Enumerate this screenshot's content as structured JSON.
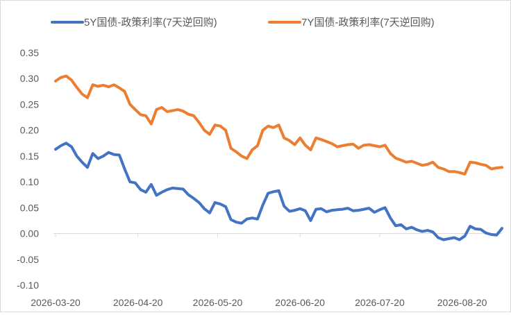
{
  "chart_data": {
    "type": "line",
    "title": "",
    "xlabel": "",
    "ylabel": "",
    "ylim": [
      -0.1,
      0.35
    ],
    "y_ticks": [
      "0.35",
      "0.30",
      "0.25",
      "0.20",
      "0.15",
      "0.10",
      "0.05",
      "0.00",
      "-0.05",
      "-0.10"
    ],
    "y_tick_values": [
      0.35,
      0.3,
      0.25,
      0.2,
      0.15,
      0.1,
      0.05,
      0.0,
      -0.05,
      -0.1
    ],
    "x_ticks": [
      "2026-03-20",
      "2026-04-20",
      "2026-05-20",
      "2026-06-20",
      "2026-07-20",
      "2026-08-20"
    ],
    "legend": "top",
    "grid": false,
    "x": [
      "2026-03-20",
      "2026-03-22",
      "2026-03-24",
      "2026-03-26",
      "2026-03-28",
      "2026-03-30",
      "2026-04-01",
      "2026-04-03",
      "2026-04-05",
      "2026-04-07",
      "2026-04-09",
      "2026-04-11",
      "2026-04-13",
      "2026-04-15",
      "2026-04-17",
      "2026-04-19",
      "2026-04-21",
      "2026-04-23",
      "2026-04-25",
      "2026-04-27",
      "2026-04-29",
      "2026-05-01",
      "2026-05-03",
      "2026-05-05",
      "2026-05-07",
      "2026-05-09",
      "2026-05-11",
      "2026-05-13",
      "2026-05-15",
      "2026-05-17",
      "2026-05-19",
      "2026-05-21",
      "2026-05-23",
      "2026-05-25",
      "2026-05-27",
      "2026-05-29",
      "2026-05-31",
      "2026-06-02",
      "2026-06-04",
      "2026-06-06",
      "2026-06-08",
      "2026-06-10",
      "2026-06-12",
      "2026-06-14",
      "2026-06-16",
      "2026-06-18",
      "2026-06-20",
      "2026-06-22",
      "2026-06-24",
      "2026-06-26",
      "2026-06-28",
      "2026-06-30",
      "2026-07-02",
      "2026-07-04",
      "2026-07-06",
      "2026-07-08",
      "2026-07-10",
      "2026-07-12",
      "2026-07-14",
      "2026-07-16",
      "2026-07-18",
      "2026-07-20",
      "2026-07-22",
      "2026-07-24",
      "2026-07-26",
      "2026-07-28",
      "2026-07-30",
      "2026-08-01",
      "2026-08-03",
      "2026-08-05",
      "2026-08-07",
      "2026-08-09",
      "2026-08-11",
      "2026-08-13",
      "2026-08-15",
      "2026-08-17",
      "2026-08-19",
      "2026-08-21",
      "2026-08-23",
      "2026-08-25",
      "2026-08-27",
      "2026-08-29",
      "2026-08-31",
      "2026-09-02",
      "2026-09-04"
    ],
    "series": [
      {
        "name": "5Y国债-政策利率(7天逆回购)",
        "color": "#4472C4",
        "values": [
          0.163,
          0.17,
          0.175,
          0.168,
          0.15,
          0.138,
          0.128,
          0.155,
          0.145,
          0.15,
          0.157,
          0.153,
          0.152,
          0.125,
          0.1,
          0.098,
          0.085,
          0.08,
          0.095,
          0.074,
          0.08,
          0.085,
          0.088,
          0.087,
          0.086,
          0.075,
          0.068,
          0.06,
          0.048,
          0.04,
          0.06,
          0.057,
          0.052,
          0.027,
          0.022,
          0.02,
          0.028,
          0.03,
          0.028,
          0.055,
          0.078,
          0.081,
          0.083,
          0.053,
          0.043,
          0.045,
          0.048,
          0.044,
          0.025,
          0.047,
          0.048,
          0.042,
          0.045,
          0.046,
          0.047,
          0.049,
          0.044,
          0.045,
          0.047,
          0.049,
          0.041,
          0.046,
          0.05,
          0.03,
          0.015,
          0.017,
          0.009,
          0.012,
          0.007,
          0.004,
          0.006,
          0.003,
          -0.008,
          -0.012,
          -0.01,
          -0.008,
          -0.012,
          -0.005,
          0.014,
          0.009,
          0.008,
          0.001,
          -0.002,
          -0.003,
          0.01
        ]
      },
      {
        "name": "7Y国债-政策利率(7天逆回购)",
        "color": "#ED7D31",
        "values": [
          0.295,
          0.302,
          0.305,
          0.297,
          0.283,
          0.27,
          0.263,
          0.288,
          0.285,
          0.287,
          0.284,
          0.288,
          0.282,
          0.275,
          0.25,
          0.24,
          0.23,
          0.228,
          0.212,
          0.24,
          0.244,
          0.236,
          0.238,
          0.24,
          0.237,
          0.231,
          0.228,
          0.215,
          0.2,
          0.192,
          0.21,
          0.208,
          0.2,
          0.165,
          0.158,
          0.15,
          0.145,
          0.162,
          0.17,
          0.2,
          0.208,
          0.205,
          0.21,
          0.185,
          0.18,
          0.172,
          0.185,
          0.171,
          0.162,
          0.185,
          0.182,
          0.178,
          0.174,
          0.168,
          0.17,
          0.172,
          0.173,
          0.165,
          0.171,
          0.172,
          0.17,
          0.168,
          0.171,
          0.155,
          0.146,
          0.142,
          0.138,
          0.14,
          0.136,
          0.132,
          0.134,
          0.138,
          0.128,
          0.125,
          0.12,
          0.12,
          0.118,
          0.115,
          0.138,
          0.137,
          0.134,
          0.132,
          0.125,
          0.127,
          0.128
        ]
      }
    ]
  }
}
